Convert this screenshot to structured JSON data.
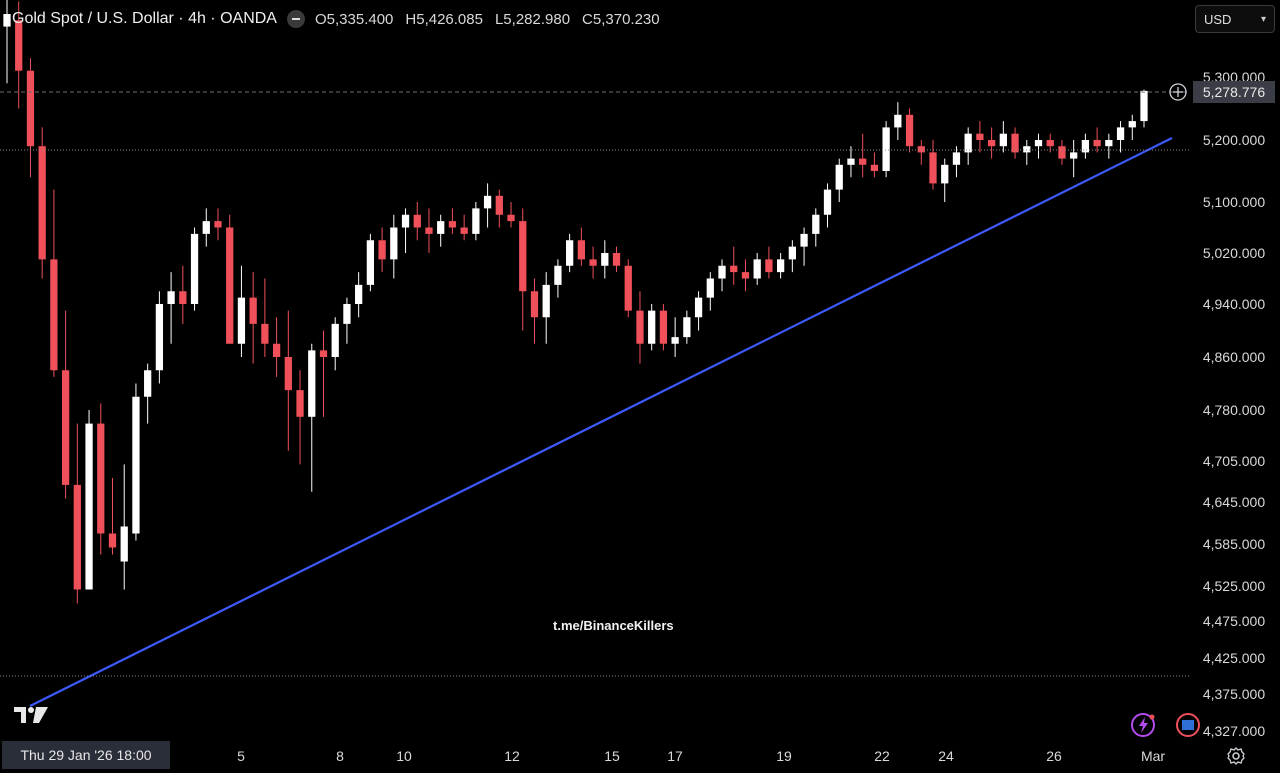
{
  "header": {
    "symbol_title": "Gold Spot / U.S. Dollar · 4h · OANDA",
    "open": "O5,335.400",
    "high": "H5,426.085",
    "low": "L5,282.980",
    "close": "C5,370.230"
  },
  "currency_select": {
    "value": "USD"
  },
  "watermark": "t.me/BinanceKillers",
  "crosshair_date": "Thu 29 Jan '26   18:00",
  "colors": {
    "up": "#ffffff",
    "down": "#f0505a",
    "trendline": "#3d5afe",
    "background": "#000000"
  },
  "icons": [
    "tradingview-logo-icon",
    "flash-icon",
    "flag-icon",
    "settings-icon",
    "add-alert-icon"
  ],
  "chart_data": {
    "type": "candlestick",
    "y_axis_labels": [
      "5,300.000",
      "5,200.000",
      "5,100.000",
      "5,020.000",
      "4,940.000",
      "4,860.000",
      "4,780.000",
      "4,705.000",
      "4,645.000",
      "4,585.000",
      "4,525.000",
      "4,475.000",
      "4,425.000",
      "4,375.000",
      "4,327.000"
    ],
    "x_axis_labels": [
      "5",
      "8",
      "10",
      "12",
      "15",
      "17",
      "19",
      "22",
      "24",
      "26",
      "Mar"
    ],
    "current_price": "5,278.776",
    "ylim": [
      4327,
      5300
    ],
    "candles": [
      [
        5380,
        5440,
        5290,
        5400
      ],
      [
        5390,
        5420,
        5250,
        5310
      ],
      [
        5310,
        5330,
        5140,
        5190
      ],
      [
        5190,
        5220,
        4980,
        5010
      ],
      [
        5010,
        5120,
        4830,
        4840
      ],
      [
        4840,
        4930,
        4650,
        4670
      ],
      [
        4670,
        4760,
        4500,
        4520
      ],
      [
        4520,
        4780,
        4520,
        4760
      ],
      [
        4760,
        4790,
        4570,
        4600
      ],
      [
        4600,
        4680,
        4570,
        4580
      ],
      [
        4560,
        4700,
        4520,
        4610
      ],
      [
        4600,
        4820,
        4590,
        4800
      ],
      [
        4800,
        4850,
        4760,
        4840
      ],
      [
        4840,
        4960,
        4820,
        4940
      ],
      [
        4940,
        4990,
        4880,
        4960
      ],
      [
        4960,
        5000,
        4910,
        4940
      ],
      [
        4940,
        5060,
        4930,
        5050
      ],
      [
        5050,
        5090,
        5030,
        5070
      ],
      [
        5070,
        5090,
        5040,
        5060
      ],
      [
        5060,
        5080,
        4880,
        4880
      ],
      [
        4880,
        5000,
        4860,
        4950
      ],
      [
        4950,
        4990,
        4850,
        4910
      ],
      [
        4910,
        4980,
        4860,
        4880
      ],
      [
        4880,
        4920,
        4830,
        4860
      ],
      [
        4860,
        4930,
        4720,
        4810
      ],
      [
        4810,
        4840,
        4700,
        4770
      ],
      [
        4770,
        4880,
        4660,
        4870
      ],
      [
        4870,
        4900,
        4770,
        4860
      ],
      [
        4860,
        4920,
        4840,
        4910
      ],
      [
        4910,
        4950,
        4880,
        4940
      ],
      [
        4940,
        4990,
        4920,
        4970
      ],
      [
        4970,
        5050,
        4960,
        5040
      ],
      [
        5040,
        5060,
        4990,
        5010
      ],
      [
        5010,
        5080,
        4980,
        5060
      ],
      [
        5060,
        5090,
        5020,
        5080
      ],
      [
        5080,
        5100,
        5040,
        5060
      ],
      [
        5060,
        5090,
        5020,
        5050
      ],
      [
        5050,
        5080,
        5030,
        5070
      ],
      [
        5070,
        5090,
        5050,
        5060
      ],
      [
        5060,
        5080,
        5040,
        5050
      ],
      [
        5050,
        5100,
        5040,
        5090
      ],
      [
        5090,
        5130,
        5060,
        5110
      ],
      [
        5110,
        5120,
        5060,
        5080
      ],
      [
        5080,
        5100,
        5060,
        5070
      ],
      [
        5070,
        5090,
        4900,
        4960
      ],
      [
        4960,
        4980,
        4880,
        4920
      ],
      [
        4920,
        4990,
        4880,
        4970
      ],
      [
        4970,
        5010,
        4950,
        5000
      ],
      [
        5000,
        5050,
        4990,
        5040
      ],
      [
        5040,
        5060,
        5000,
        5010
      ],
      [
        5010,
        5030,
        4980,
        5000
      ],
      [
        5000,
        5040,
        4980,
        5020
      ],
      [
        5020,
        5030,
        4990,
        5000
      ],
      [
        5000,
        5010,
        4920,
        4930
      ],
      [
        4930,
        4960,
        4850,
        4880
      ],
      [
        4880,
        4940,
        4870,
        4930
      ],
      [
        4930,
        4940,
        4870,
        4880
      ],
      [
        4880,
        4920,
        4860,
        4890
      ],
      [
        4890,
        4930,
        4880,
        4920
      ],
      [
        4920,
        4960,
        4900,
        4950
      ],
      [
        4950,
        4990,
        4930,
        4980
      ],
      [
        4980,
        5010,
        4960,
        5000
      ],
      [
        5000,
        5030,
        4970,
        4990
      ],
      [
        4990,
        5010,
        4960,
        4980
      ],
      [
        4980,
        5020,
        4970,
        5010
      ],
      [
        5010,
        5030,
        4980,
        4990
      ],
      [
        4990,
        5020,
        4980,
        5010
      ],
      [
        5010,
        5040,
        4990,
        5030
      ],
      [
        5030,
        5060,
        5000,
        5050
      ],
      [
        5050,
        5090,
        5030,
        5080
      ],
      [
        5080,
        5130,
        5060,
        5120
      ],
      [
        5120,
        5170,
        5100,
        5160
      ],
      [
        5160,
        5190,
        5140,
        5170
      ],
      [
        5170,
        5210,
        5140,
        5160
      ],
      [
        5160,
        5180,
        5140,
        5150
      ],
      [
        5150,
        5230,
        5140,
        5220
      ],
      [
        5220,
        5260,
        5200,
        5240
      ],
      [
        5240,
        5250,
        5180,
        5190
      ],
      [
        5190,
        5200,
        5160,
        5180
      ],
      [
        5180,
        5200,
        5120,
        5130
      ],
      [
        5130,
        5170,
        5100,
        5160
      ],
      [
        5160,
        5190,
        5140,
        5180
      ],
      [
        5180,
        5220,
        5160,
        5210
      ],
      [
        5210,
        5230,
        5180,
        5200
      ],
      [
        5200,
        5220,
        5170,
        5190
      ],
      [
        5190,
        5230,
        5180,
        5210
      ],
      [
        5210,
        5220,
        5170,
        5180
      ],
      [
        5180,
        5200,
        5160,
        5190
      ],
      [
        5190,
        5210,
        5170,
        5200
      ],
      [
        5200,
        5210,
        5180,
        5190
      ],
      [
        5190,
        5200,
        5160,
        5170
      ],
      [
        5170,
        5200,
        5140,
        5180
      ],
      [
        5180,
        5210,
        5170,
        5200
      ],
      [
        5200,
        5220,
        5180,
        5190
      ],
      [
        5190,
        5210,
        5170,
        5200
      ],
      [
        5200,
        5230,
        5180,
        5220
      ],
      [
        5220,
        5240,
        5200,
        5230
      ],
      [
        5230,
        5280,
        5220,
        5278
      ]
    ]
  }
}
